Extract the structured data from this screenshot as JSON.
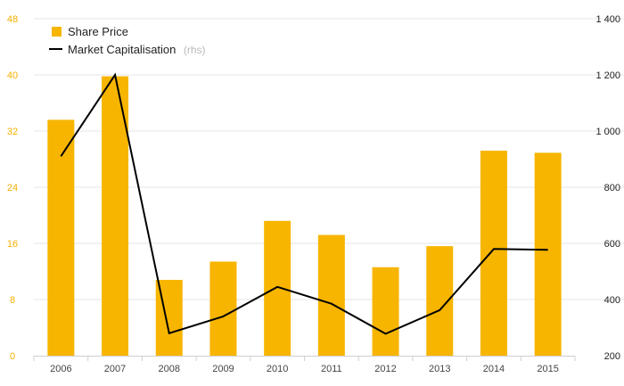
{
  "chart_data": {
    "type": "bar+line",
    "categories": [
      "2006",
      "2007",
      "2008",
      "2009",
      "2010",
      "2011",
      "2012",
      "2013",
      "2014",
      "2015"
    ],
    "series": [
      {
        "name": "Share Price",
        "kind": "bar",
        "axis": "left",
        "color": "#f7b500",
        "values": [
          33.6,
          39.8,
          10.8,
          13.4,
          19.2,
          17.2,
          12.6,
          15.6,
          29.2,
          28.9
        ]
      },
      {
        "name": "Market Capitalisation",
        "name_suffix": "(rhs)",
        "kind": "line",
        "axis": "right",
        "color": "#000000",
        "values": [
          910,
          1200,
          280,
          340,
          445,
          385,
          278,
          362,
          580,
          577
        ]
      }
    ],
    "left_axis": {
      "ylim": [
        0,
        48
      ],
      "ticks": [
        "0",
        "8",
        "16",
        "24",
        "32",
        "40",
        "48"
      ],
      "color": "#f5b000"
    },
    "right_axis": {
      "ylim": [
        200,
        1400
      ],
      "ticks": [
        "200",
        "400",
        "600",
        "800",
        "1 000",
        "1 200",
        "1 400"
      ]
    },
    "grid": true,
    "legend_position": "top-left"
  }
}
